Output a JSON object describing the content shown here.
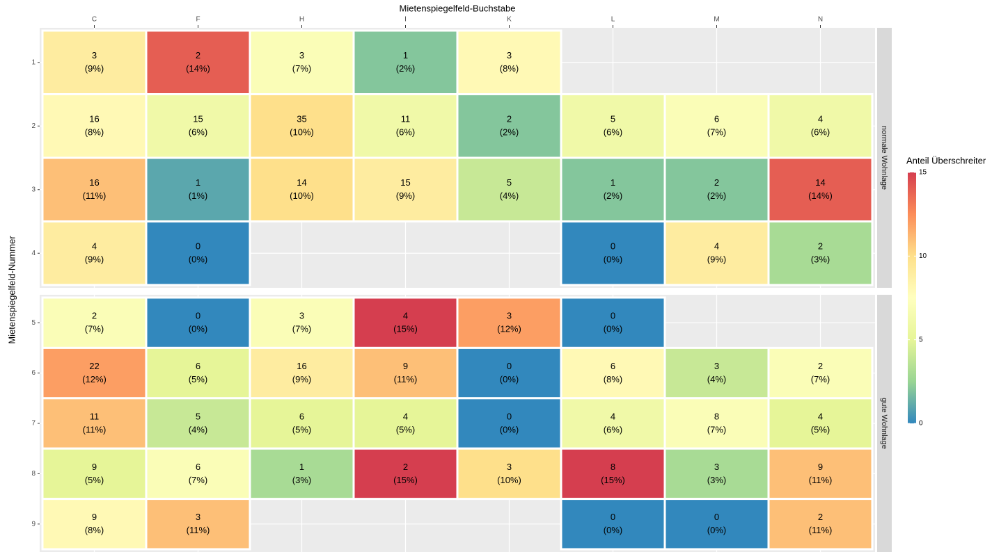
{
  "chart_data": {
    "type": "heatmap",
    "x_label": "Mietenspiegelfeld-Buchstabe",
    "y_label": "Mietenspiegelfeld-Nummer",
    "x_categories": [
      "C",
      "F",
      "H",
      "I",
      "K",
      "L",
      "M",
      "N"
    ],
    "facets": [
      {
        "name": "normale Wohnlage",
        "rows": [
          "1",
          "2",
          "3",
          "4"
        ]
      },
      {
        "name": "gute Wohnlage",
        "rows": [
          "5",
          "6",
          "7",
          "8",
          "9"
        ]
      }
    ],
    "cells": {
      "x": [
        "C",
        "F",
        "H",
        "I",
        "K",
        "C",
        "F",
        "H",
        "I",
        "K",
        "L",
        "M",
        "N",
        "C",
        "F",
        "H",
        "I",
        "K",
        "L",
        "M",
        "N",
        "C",
        "F",
        "L",
        "M",
        "N",
        "C",
        "F",
        "H",
        "I",
        "K",
        "L",
        "C",
        "F",
        "H",
        "I",
        "K",
        "L",
        "M",
        "N",
        "C",
        "F",
        "H",
        "I",
        "K",
        "L",
        "M",
        "N",
        "C",
        "F",
        "H",
        "I",
        "K",
        "L",
        "M",
        "N",
        "C",
        "F",
        "L",
        "M",
        "N"
      ],
      "y": [
        "1",
        "1",
        "1",
        "1",
        "1",
        "2",
        "2",
        "2",
        "2",
        "2",
        "2",
        "2",
        "2",
        "3",
        "3",
        "3",
        "3",
        "3",
        "3",
        "3",
        "3",
        "4",
        "4",
        "4",
        "4",
        "4",
        "5",
        "5",
        "5",
        "5",
        "5",
        "5",
        "6",
        "6",
        "6",
        "6",
        "6",
        "6",
        "6",
        "6",
        "7",
        "7",
        "7",
        "7",
        "7",
        "7",
        "7",
        "7",
        "8",
        "8",
        "8",
        "8",
        "8",
        "8",
        "8",
        "8",
        "9",
        "9",
        "9",
        "9",
        "9"
      ],
      "counts": [
        3,
        2,
        3,
        1,
        3,
        16,
        15,
        35,
        11,
        2,
        5,
        6,
        4,
        16,
        1,
        14,
        15,
        5,
        1,
        2,
        14,
        4,
        0,
        0,
        4,
        2,
        2,
        0,
        3,
        4,
        3,
        0,
        22,
        6,
        16,
        9,
        0,
        6,
        3,
        2,
        11,
        5,
        6,
        4,
        0,
        4,
        8,
        4,
        9,
        6,
        1,
        2,
        3,
        8,
        3,
        9,
        9,
        3,
        0,
        0,
        2
      ],
      "values": [
        9,
        14,
        7,
        2,
        8,
        8,
        6,
        10,
        6,
        2,
        6,
        7,
        6,
        11,
        1,
        10,
        9,
        4,
        2,
        2,
        14,
        9,
        0,
        0,
        9,
        3,
        7,
        0,
        7,
        15,
        12,
        0,
        12,
        5,
        9,
        11,
        0,
        8,
        4,
        7,
        11,
        4,
        5,
        5,
        0,
        6,
        7,
        5,
        5,
        7,
        3,
        15,
        10,
        15,
        3,
        11,
        8,
        11,
        0,
        0,
        11
      ],
      "value_labels": [
        "(9%)",
        "(14%)",
        "(7%)",
        "(2%)",
        "(8%)",
        "(8%)",
        "(6%)",
        "(10%)",
        "(6%)",
        "(2%)",
        "(6%)",
        "(7%)",
        "(6%)",
        "(11%)",
        "(1%)",
        "(10%)",
        "(9%)",
        "(4%)",
        "(2%)",
        "(2%)",
        "(14%)",
        "(9%)",
        "(0%)",
        "(0%)",
        "(9%)",
        "(3%)",
        "(7%)",
        "(0%)",
        "(7%)",
        "(15%)",
        "(12%)",
        "(0%)",
        "(12%)",
        "(5%)",
        "(9%)",
        "(11%)",
        "(0%)",
        "(8%)",
        "(4%)",
        "(7%)",
        "(11%)",
        "(4%)",
        "(5%)",
        "(5%)",
        "(0%)",
        "(6%)",
        "(7%)",
        "(5%)",
        "(5%)",
        "(7%)",
        "(3%)",
        "(15%)",
        "(10%)",
        "(15%)",
        "(3%)",
        "(11%)",
        "(8%)",
        "(11%)",
        "(0%)",
        "(0%)",
        "(11%)"
      ]
    },
    "colorbar": {
      "title": "Anteil Überschreiter",
      "lim": [
        0,
        15
      ],
      "ticks": [
        0,
        5,
        10,
        15
      ],
      "colors": [
        "#3288bd",
        "#99d594",
        "#e6f598",
        "#ffffbf",
        "#fee08b",
        "#fc8d59",
        "#d53e4f"
      ]
    }
  }
}
